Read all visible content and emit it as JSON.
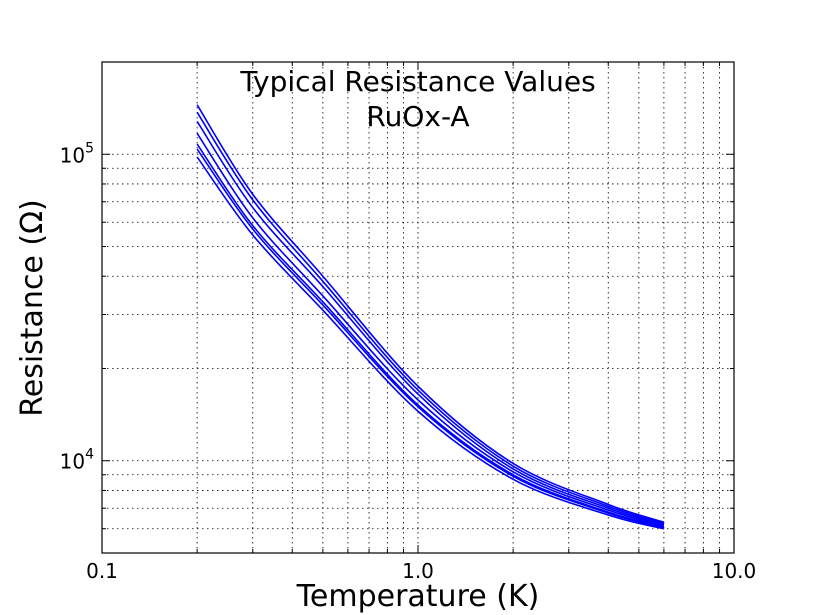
{
  "chart_data": {
    "type": "line",
    "title": [
      "Typical Resistance Values",
      "RuOx-A"
    ],
    "xlabel": "Temperature (K)",
    "ylabel": "Resistance (Ω)",
    "x_scale": "log",
    "y_scale": "log",
    "xlim": [
      0.1,
      10.0
    ],
    "ylim": [
      5000,
      200000
    ],
    "grid": true,
    "x_ticks": [
      {
        "value": 0.1,
        "label": "0.1"
      },
      {
        "value": 1.0,
        "label": "1.0"
      },
      {
        "value": 10.0,
        "label": "10.0"
      }
    ],
    "y_ticks": [
      {
        "value": 10000,
        "base": "10",
        "exp": "4"
      },
      {
        "value": 100000,
        "base": "10",
        "exp": "5"
      }
    ],
    "series": [
      {
        "x": [
          0.2,
          0.3,
          0.5,
          1.0,
          2.0,
          4.0,
          6.0
        ],
        "y": [
          145000,
          74000,
          40000,
          17500,
          9800,
          7200,
          6300
        ]
      },
      {
        "x": [
          0.2,
          0.3,
          0.5,
          1.0,
          2.0,
          4.0,
          6.0
        ],
        "y": [
          137000,
          71000,
          38500,
          17000,
          9600,
          7100,
          6250
        ]
      },
      {
        "x": [
          0.2,
          0.3,
          0.5,
          1.0,
          2.0,
          4.0,
          6.0
        ],
        "y": [
          128000,
          67000,
          37000,
          16500,
          9400,
          7000,
          6200
        ]
      },
      {
        "x": [
          0.2,
          0.3,
          0.5,
          1.0,
          2.0,
          4.0,
          6.0
        ],
        "y": [
          117000,
          62000,
          34500,
          15800,
          9200,
          6900,
          6150
        ]
      },
      {
        "x": [
          0.2,
          0.3,
          0.5,
          1.0,
          2.0,
          4.0,
          6.0
        ],
        "y": [
          108000,
          58500,
          33000,
          15200,
          9000,
          6800,
          6100
        ]
      },
      {
        "x": [
          0.2,
          0.3,
          0.5,
          1.0,
          2.0,
          4.0,
          6.0
        ],
        "y": [
          104000,
          57000,
          32200,
          15000,
          8900,
          6750,
          6050
        ]
      },
      {
        "x": [
          0.2,
          0.3,
          0.5,
          1.0,
          2.0,
          4.0,
          6.0
        ],
        "y": [
          98000,
          54500,
          31000,
          14500,
          8700,
          6650,
          6000
        ]
      }
    ],
    "line_color": "#0000ff"
  }
}
